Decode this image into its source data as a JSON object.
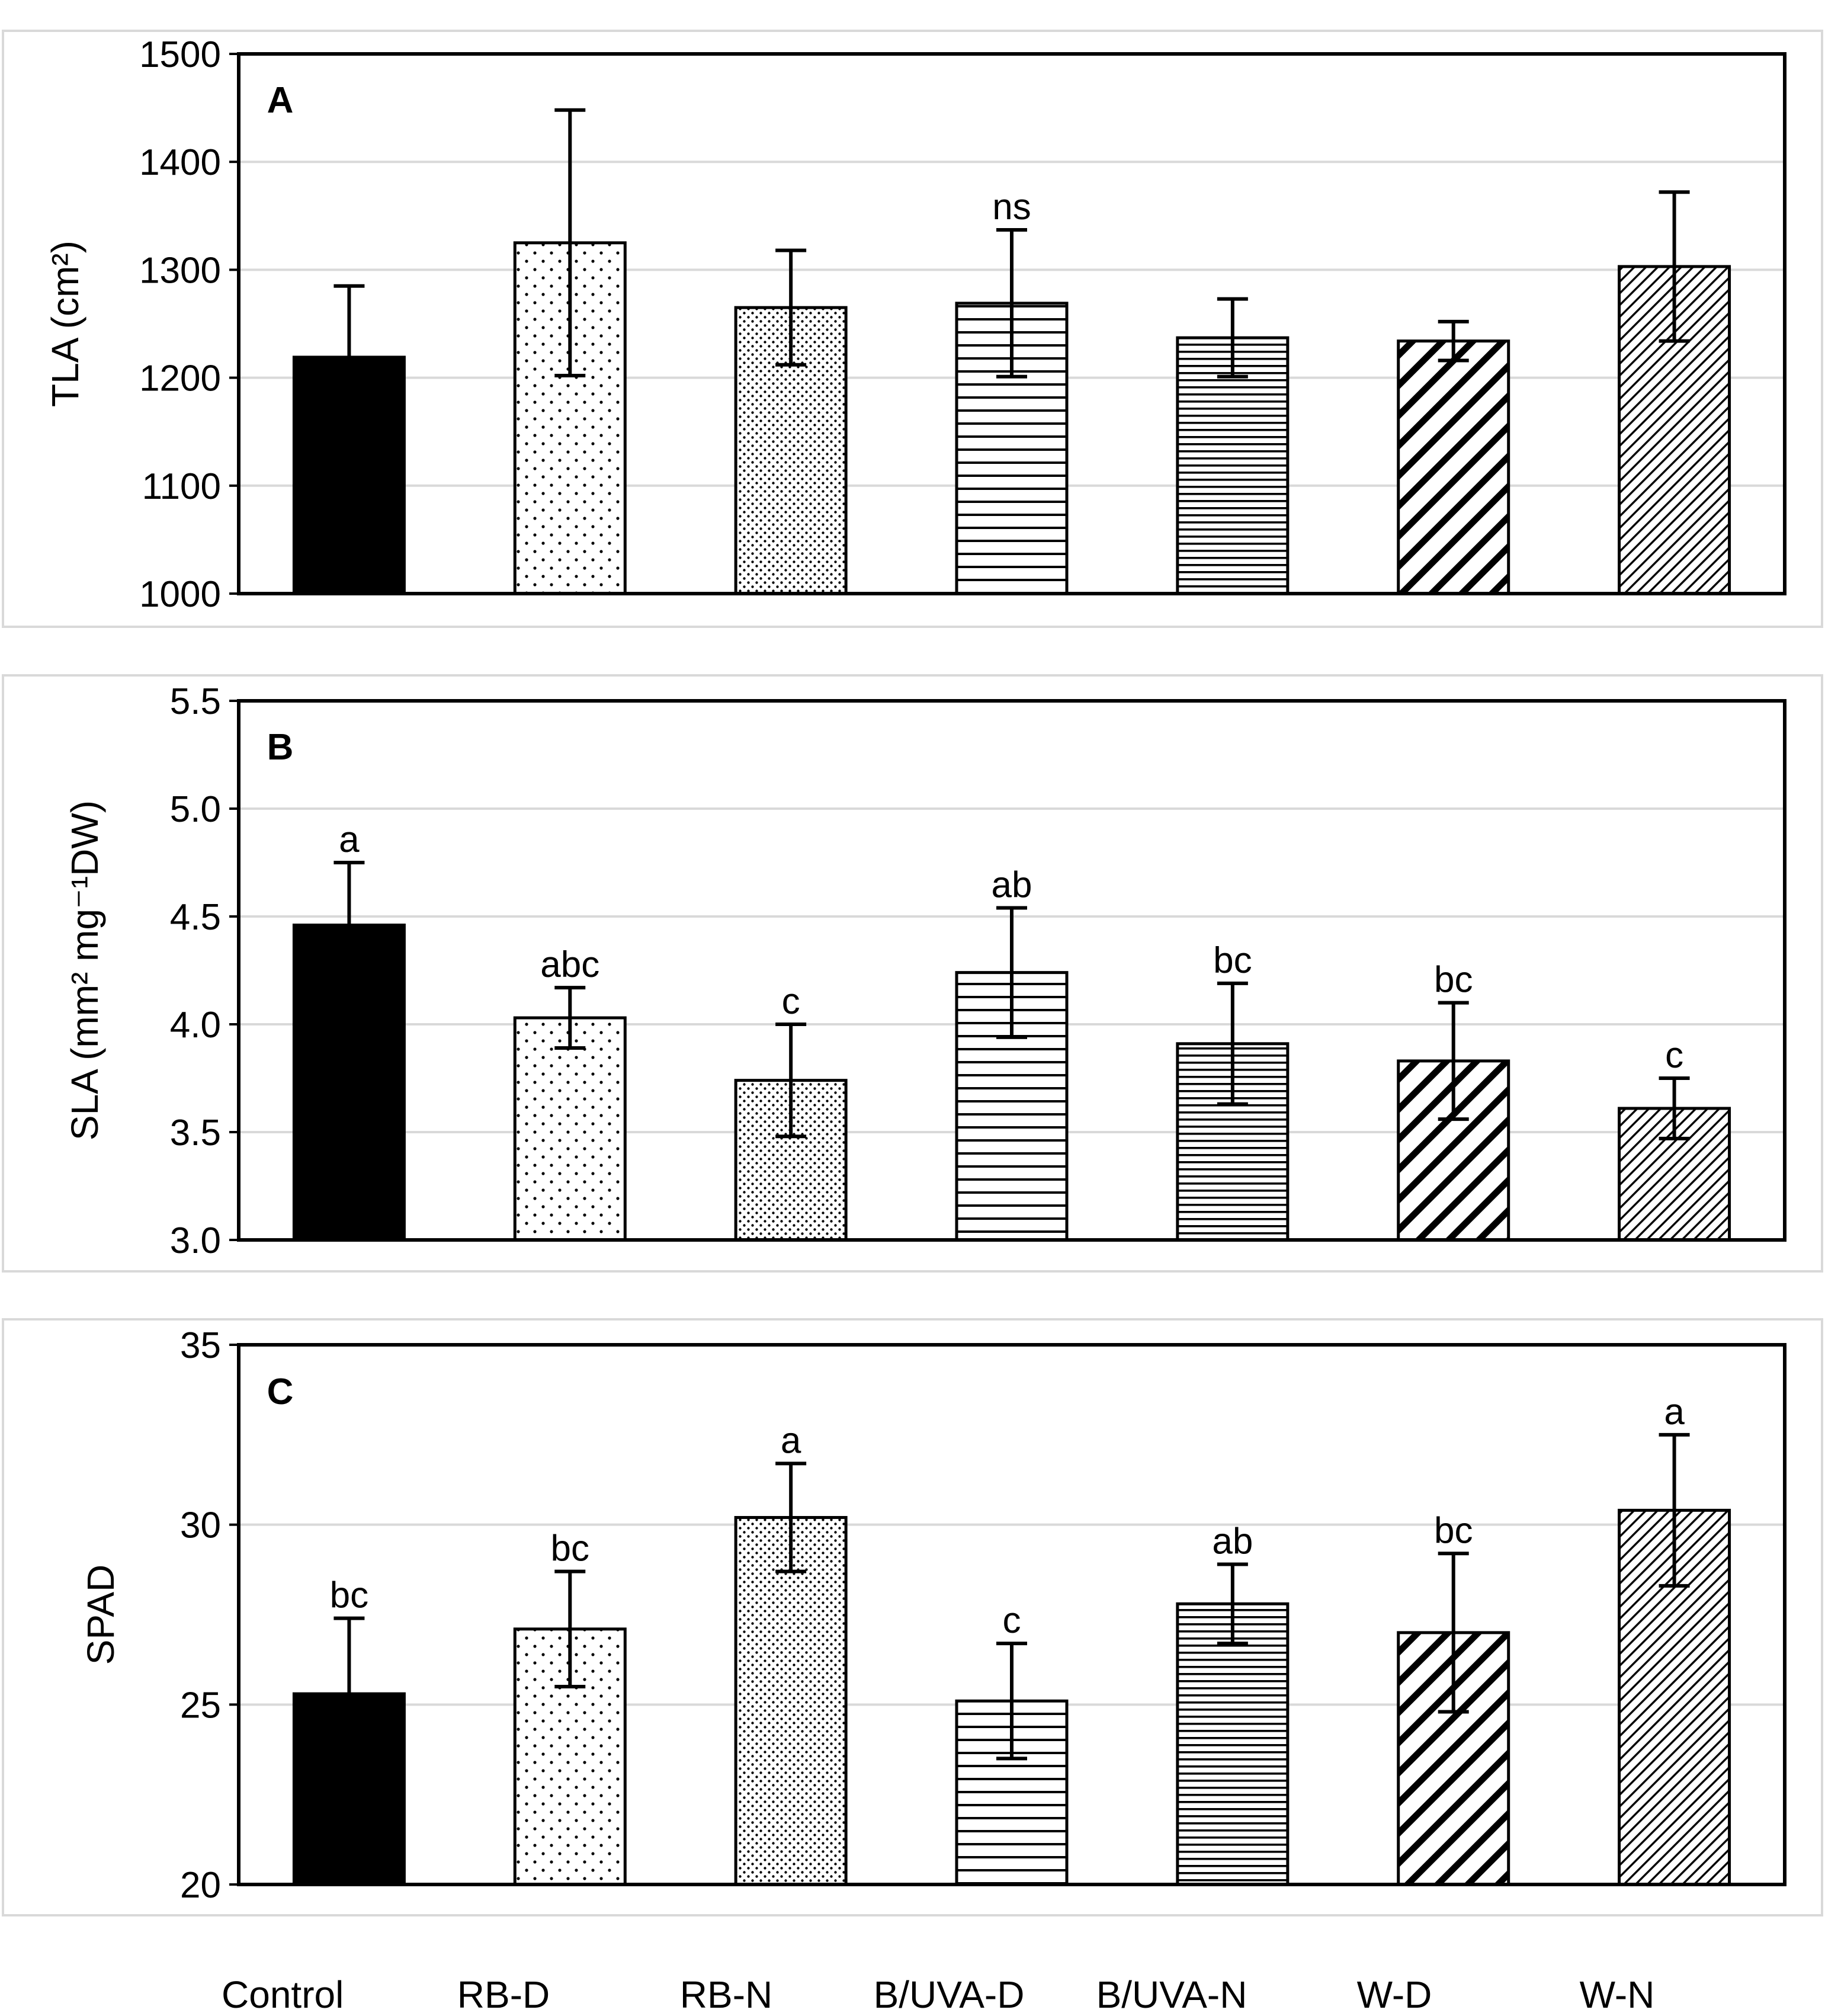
{
  "chart_data": [
    {
      "type": "bar",
      "panel_label": "A",
      "ylabel": "TLA (cm²)",
      "ylim": [
        1000,
        1500
      ],
      "yticks": [
        1000,
        1100,
        1200,
        1300,
        1400,
        1500
      ],
      "ytick_labels": [
        "1000",
        "1100",
        "1200",
        "1300",
        "1400",
        "1500"
      ],
      "grid": true,
      "categories": [
        "Control",
        "RB-D",
        "RB-N",
        "B/UVA-D",
        "B/UVA-N",
        "W-D",
        "W-N"
      ],
      "values": [
        1219,
        1325,
        1265,
        1269,
        1237,
        1234,
        1303
      ],
      "errors": [
        66,
        123,
        53,
        68,
        36,
        18,
        69
      ],
      "letters": [
        "",
        "",
        "",
        "ns",
        "",
        "",
        ""
      ]
    },
    {
      "type": "bar",
      "panel_label": "B",
      "ylabel": "SLA (mm² mg⁻¹DW)",
      "ylim": [
        3.0,
        5.5
      ],
      "yticks": [
        3.0,
        3.5,
        4.0,
        4.5,
        5.0,
        5.5
      ],
      "ytick_labels": [
        "3.0",
        "3.5",
        "4.0",
        "4.5",
        "5.0",
        "5.5"
      ],
      "grid": true,
      "categories": [
        "Control",
        "RB-D",
        "RB-N",
        "B/UVA-D",
        "B/UVA-N",
        "W-D",
        "W-N"
      ],
      "values": [
        4.46,
        4.03,
        3.74,
        4.24,
        3.91,
        3.83,
        3.61
      ],
      "errors": [
        0.29,
        0.14,
        0.26,
        0.3,
        0.28,
        0.27,
        0.14
      ],
      "letters": [
        "a",
        "abc",
        "c",
        "ab",
        "bc",
        "bc",
        "c"
      ]
    },
    {
      "type": "bar",
      "panel_label": "C",
      "ylabel": "SPAD",
      "ylim": [
        20,
        35
      ],
      "yticks": [
        20,
        25,
        30,
        35
      ],
      "ytick_labels": [
        "20",
        "25",
        "30",
        "35"
      ],
      "grid": true,
      "categories": [
        "Control",
        "RB-D",
        "RB-N",
        "B/UVA-D",
        "B/UVA-N",
        "W-D",
        "W-N"
      ],
      "values": [
        25.3,
        27.1,
        30.2,
        25.1,
        27.8,
        27.0,
        30.4
      ],
      "errors": [
        2.1,
        1.6,
        1.5,
        1.6,
        1.1,
        2.2,
        2.1
      ],
      "letters": [
        "bc",
        "bc",
        "a",
        "c",
        "ab",
        "bc",
        "a"
      ]
    }
  ],
  "x_axis_labels": [
    "Control",
    "RB-D",
    "RB-N",
    "B/UVA-D",
    "B/UVA-N",
    "W-D",
    "W-N"
  ],
  "colors": {
    "axis": "#000000",
    "grid": "#d9d9d9",
    "bar_edge": "#000000",
    "bar_fill": "#ffffff"
  },
  "bar_patterns": [
    "solid",
    "sparse-dots",
    "dense-dots",
    "horizontal-lines",
    "dense-horizontal-lines",
    "wide-diagonal",
    "fine-diagonal"
  ]
}
